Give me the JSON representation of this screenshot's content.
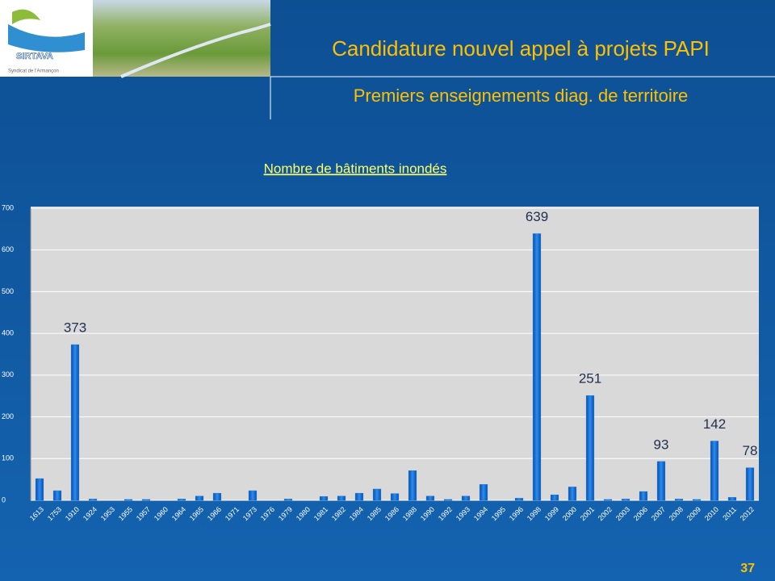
{
  "slide": {
    "title": "Candidature nouvel appel à projets PAPI",
    "subtitle": "Premiers enseignements diag. de territoire",
    "logo_name": "SIRTAVA",
    "logo_caption": "Syndicat de l'Armançon",
    "page_number": "37"
  },
  "chart_data": {
    "type": "bar",
    "title": "Nombre de bâtiments inondés",
    "categories": [
      "1613",
      "1753",
      "1910",
      "1924",
      "1953",
      "1955",
      "1957",
      "1960",
      "1964",
      "1965",
      "1966",
      "1971",
      "1973",
      "1976",
      "1979",
      "1980",
      "1981",
      "1982",
      "1984",
      "1985",
      "1986",
      "1988",
      "1990",
      "1992",
      "1993",
      "1994",
      "1995",
      "1996",
      "1998",
      "1999",
      "2000",
      "2001",
      "2002",
      "2003",
      "2006",
      "2007",
      "2008",
      "2009",
      "2010",
      "2011",
      "2012"
    ],
    "values": [
      52,
      23,
      373,
      3,
      0,
      2,
      2,
      0,
      3,
      10,
      17,
      0,
      23,
      0,
      3,
      0,
      9,
      10,
      17,
      27,
      16,
      71,
      10,
      2,
      10,
      38,
      0,
      5,
      639,
      13,
      32,
      251,
      2,
      3,
      21,
      93,
      3,
      2,
      142,
      7,
      78
    ],
    "value_labels": [
      null,
      null,
      "373",
      null,
      null,
      null,
      null,
      null,
      null,
      null,
      null,
      null,
      null,
      null,
      null,
      null,
      null,
      null,
      null,
      null,
      null,
      null,
      null,
      null,
      null,
      null,
      null,
      null,
      "639",
      null,
      null,
      "251",
      null,
      null,
      null,
      "93",
      null,
      null,
      "142",
      null,
      "78"
    ],
    "color": "#1a78d8",
    "ylim": [
      0,
      700
    ],
    "yticks": [
      0,
      100,
      200,
      300,
      400,
      500,
      600,
      700
    ],
    "grid": true
  }
}
